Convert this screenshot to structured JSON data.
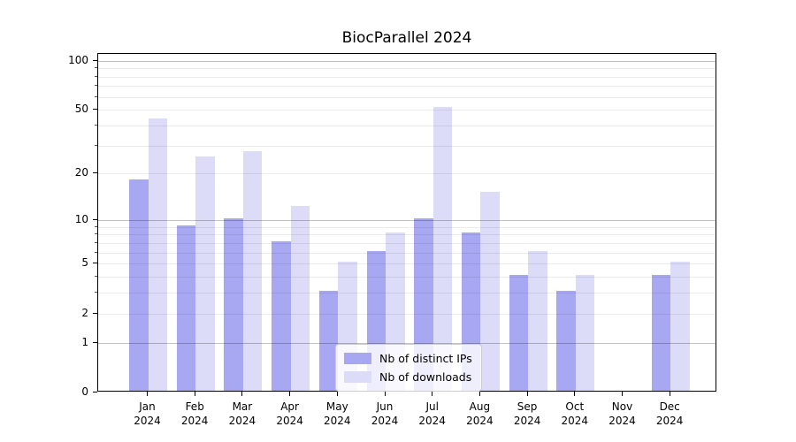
{
  "chart_data": {
    "type": "bar",
    "title": "BiocParallel 2024",
    "categories": [
      "Jan",
      "Feb",
      "Mar",
      "Apr",
      "May",
      "Jun",
      "Jul",
      "Aug",
      "Sep",
      "Oct",
      "Nov",
      "Dec"
    ],
    "category_year_line": "2024",
    "series": [
      {
        "key": "distinct-ips",
        "name": "Nb of distinct IPs",
        "color": "#a8a8f2",
        "values": [
          18,
          9,
          10,
          7,
          3,
          6,
          10,
          8,
          4,
          3,
          0,
          4
        ]
      },
      {
        "key": "downloads",
        "name": "Nb of downloads",
        "color": "#dcdcf8",
        "values": [
          43,
          25,
          27,
          12,
          5,
          8,
          51,
          15,
          6,
          4,
          0,
          5
        ]
      }
    ],
    "xlabel": "",
    "ylabel": "",
    "yscale": "log1p",
    "ylim": [
      0,
      110
    ],
    "yticks": [
      0,
      1,
      2,
      5,
      10,
      20,
      50,
      100
    ],
    "major_gridlines": [
      1,
      10,
      100
    ],
    "minor_gridlines": [
      2,
      3,
      4,
      5,
      6,
      7,
      8,
      9,
      20,
      30,
      40,
      50,
      60,
      70,
      80,
      90
    ],
    "grid": "on",
    "legend_position": "lower center"
  }
}
